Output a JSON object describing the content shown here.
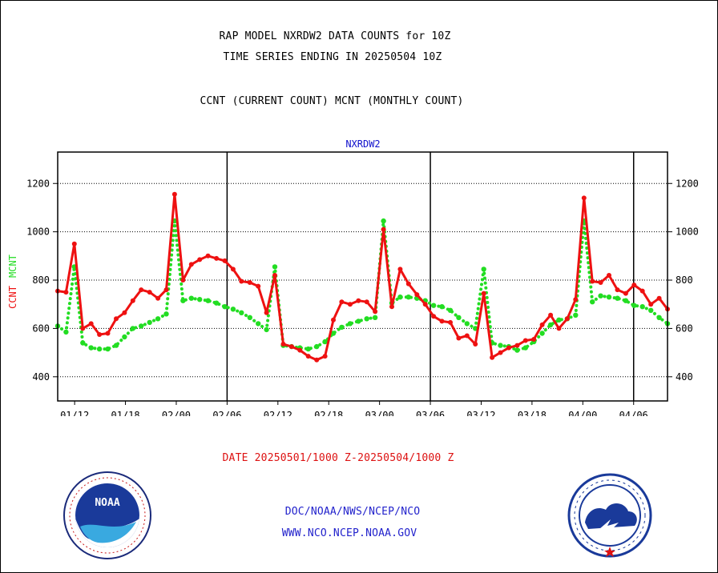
{
  "header": {
    "title_line1": "RAP MODEL NXRDW2 DATA COUNTS for 10Z",
    "title_line2": "TIME SERIES ENDING IN 20250504 10Z",
    "subtitle": "CCNT (CURRENT COUNT) MCNT (MONTHLY COUNT)"
  },
  "footer": {
    "date_range": "DATE 20250501/1000 Z-20250504/1000 Z",
    "org": "DOC/NOAA/NWS/NCEP/NCO",
    "url": "WWW.NCO.NCEP.NOAA.GOV"
  },
  "logos": {
    "left": "noaa-logo",
    "left_text": "NOAA",
    "right": "national-weather-service-logo"
  },
  "colors": {
    "ccnt": "#ee1111",
    "mcnt": "#22dd22",
    "title": "#000000",
    "footer_date": "#dd1111",
    "footer_links": "#2222cc",
    "plot_title": "#1111cc"
  },
  "chart_data": {
    "type": "line",
    "title": "NXRDW2",
    "ylabel_ccnt": "CCNT",
    "ylabel_mcnt": "MCNT",
    "ylim": [
      300,
      1330
    ],
    "yticks": [
      400,
      600,
      800,
      1000,
      1200
    ],
    "ytick_labels": [
      "400",
      "600",
      "800",
      "1000",
      "1200"
    ],
    "xtick_labels": [
      "01/12",
      "01/18",
      "02/00",
      "02/06",
      "02/12",
      "02/18",
      "03/00",
      "03/06",
      "03/12",
      "03/18",
      "04/00",
      "04/06"
    ],
    "xtick_hours": [
      12,
      18,
      24,
      30,
      36,
      42,
      48,
      54,
      60,
      66,
      72,
      78
    ],
    "day_boundaries_hours": [
      30,
      54,
      78
    ],
    "x_range_hours": [
      10,
      82
    ],
    "grid": true,
    "series": [
      {
        "name": "CCNT",
        "values": [
          755,
          750,
          950,
          600,
          620,
          575,
          580,
          640,
          665,
          715,
          760,
          750,
          725,
          760,
          1155,
          800,
          865,
          885,
          900,
          890,
          880,
          845,
          795,
          790,
          775,
          665,
          820,
          535,
          525,
          510,
          485,
          470,
          485,
          635,
          710,
          700,
          715,
          710,
          670,
          1010,
          690,
          845,
          785,
          740,
          700,
          650,
          630,
          625,
          560,
          570,
          535,
          745,
          480,
          500,
          520,
          530,
          550,
          555,
          615,
          655,
          600,
          640,
          720,
          1140,
          795,
          790,
          820,
          760,
          745,
          780,
          755,
          700,
          725,
          680
        ]
      },
      {
        "name": "MCNT",
        "values": [
          610,
          585,
          855,
          540,
          520,
          515,
          515,
          530,
          565,
          600,
          610,
          625,
          640,
          660,
          1045,
          715,
          725,
          720,
          715,
          705,
          690,
          680,
          665,
          645,
          620,
          595,
          855,
          530,
          525,
          520,
          515,
          525,
          545,
          580,
          605,
          620,
          630,
          640,
          645,
          1045,
          705,
          730,
          730,
          725,
          715,
          695,
          690,
          675,
          645,
          620,
          600,
          845,
          540,
          530,
          525,
          510,
          520,
          545,
          580,
          615,
          635,
          640,
          655,
          1045,
          710,
          735,
          730,
          725,
          715,
          695,
          690,
          675,
          645,
          620
        ]
      }
    ]
  }
}
